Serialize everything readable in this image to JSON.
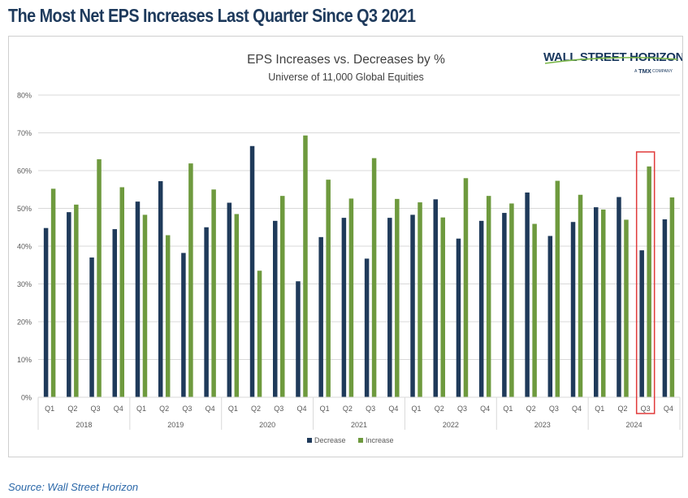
{
  "headline": "The Most Net EPS Increases Last Quarter Since Q3 2021",
  "source": "Source: Wall Street Horizon",
  "brand": {
    "name": "WALL STREET HORIZON",
    "sub_prefix": "A",
    "sub_mark": "TMX",
    "sub_suffix": "COMPANY",
    "color": "#17365d",
    "accent": "#7ab648"
  },
  "chart_data": {
    "type": "bar",
    "title": "EPS Increases vs. Decreases by %",
    "subtitle": "Universe of 11,000 Global Equities",
    "xlabel": "",
    "ylabel": "",
    "ylim": [
      0,
      80
    ],
    "yticks": [
      "0%",
      "10%",
      "20%",
      "30%",
      "40%",
      "50%",
      "60%",
      "70%",
      "80%"
    ],
    "grid": true,
    "legend_position": "bottom",
    "years": [
      "2018",
      "2019",
      "2020",
      "2021",
      "2022",
      "2023",
      "2024"
    ],
    "quarters": [
      "Q1",
      "Q2",
      "Q3",
      "Q4"
    ],
    "categories": [
      "Q1 2018",
      "Q2 2018",
      "Q3 2018",
      "Q4 2018",
      "Q1 2019",
      "Q2 2019",
      "Q3 2019",
      "Q4 2019",
      "Q1 2020",
      "Q2 2020",
      "Q3 2020",
      "Q4 2020",
      "Q1 2021",
      "Q2 2021",
      "Q3 2021",
      "Q4 2021",
      "Q1 2022",
      "Q2 2022",
      "Q3 2022",
      "Q4 2022",
      "Q1 2023",
      "Q2 2023",
      "Q3 2023",
      "Q4 2023",
      "Q1 2024",
      "Q2 2024",
      "Q3 2024",
      "Q4 2024"
    ],
    "series": [
      {
        "name": "Decrease",
        "color": "#1f3a5a",
        "values": [
          44.8,
          49.0,
          37.0,
          44.5,
          51.8,
          57.2,
          38.2,
          45.0,
          51.5,
          66.5,
          46.7,
          30.7,
          42.4,
          47.5,
          36.7,
          47.5,
          48.3,
          52.4,
          42.0,
          46.7,
          48.8,
          54.2,
          42.7,
          46.4,
          50.3,
          53.0,
          38.9,
          47.1
        ]
      },
      {
        "name": "Increase",
        "color": "#6e9a3e",
        "values": [
          55.2,
          51.0,
          63.0,
          55.6,
          48.3,
          42.9,
          61.9,
          55.0,
          48.5,
          33.5,
          53.3,
          69.3,
          57.6,
          52.6,
          63.3,
          52.5,
          51.6,
          47.6,
          58.0,
          53.3,
          51.3,
          45.9,
          57.3,
          53.6,
          49.7,
          47.0,
          61.1,
          52.9
        ]
      }
    ],
    "highlight": {
      "category": "Q3 2024",
      "color": "#e03a3a"
    },
    "axis_color": "#d9d9d9",
    "label_color": "#595959"
  }
}
